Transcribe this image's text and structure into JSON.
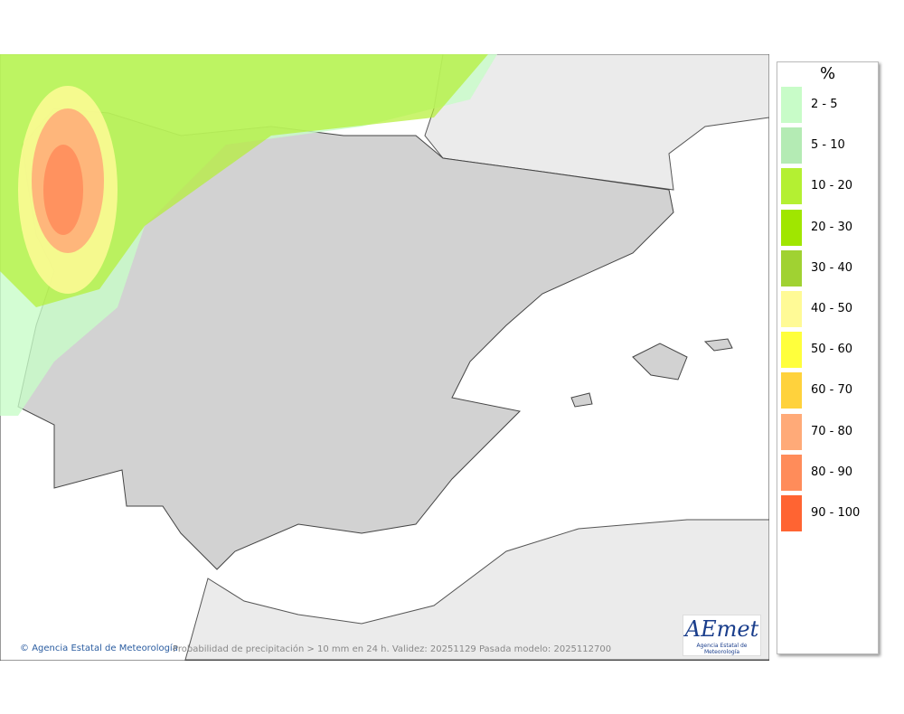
{
  "map": {
    "legend": {
      "title": "%",
      "items": [
        {
          "label": "2 - 5",
          "color": "#c8fcc8"
        },
        {
          "label": "5 - 10",
          "color": "#b4ebb4"
        },
        {
          "label": "10 - 20",
          "color": "#b4f032"
        },
        {
          "label": "20 - 30",
          "color": "#a0e600"
        },
        {
          "label": "30 - 40",
          "color": "#a0d232"
        },
        {
          "label": "40 - 50",
          "color": "#fffa96"
        },
        {
          "label": "50 - 60",
          "color": "#ffff3c"
        },
        {
          "label": "60 - 70",
          "color": "#ffd23c"
        },
        {
          "label": "70 - 80",
          "color": "#ffaa78"
        },
        {
          "label": "80 - 90",
          "color": "#ff8c5a"
        },
        {
          "label": "90 - 100",
          "color": "#ff6432"
        }
      ]
    },
    "credit": "Agencia Estatal de Meteorología",
    "caption": "Probabilidad de precipitación > 10 mm en 24 h. Validez: 20251129 Pasada modelo: 2025112700",
    "logo": {
      "name": "AEmet",
      "subtitle": "Agencia Estatal de Meteorología"
    }
  }
}
